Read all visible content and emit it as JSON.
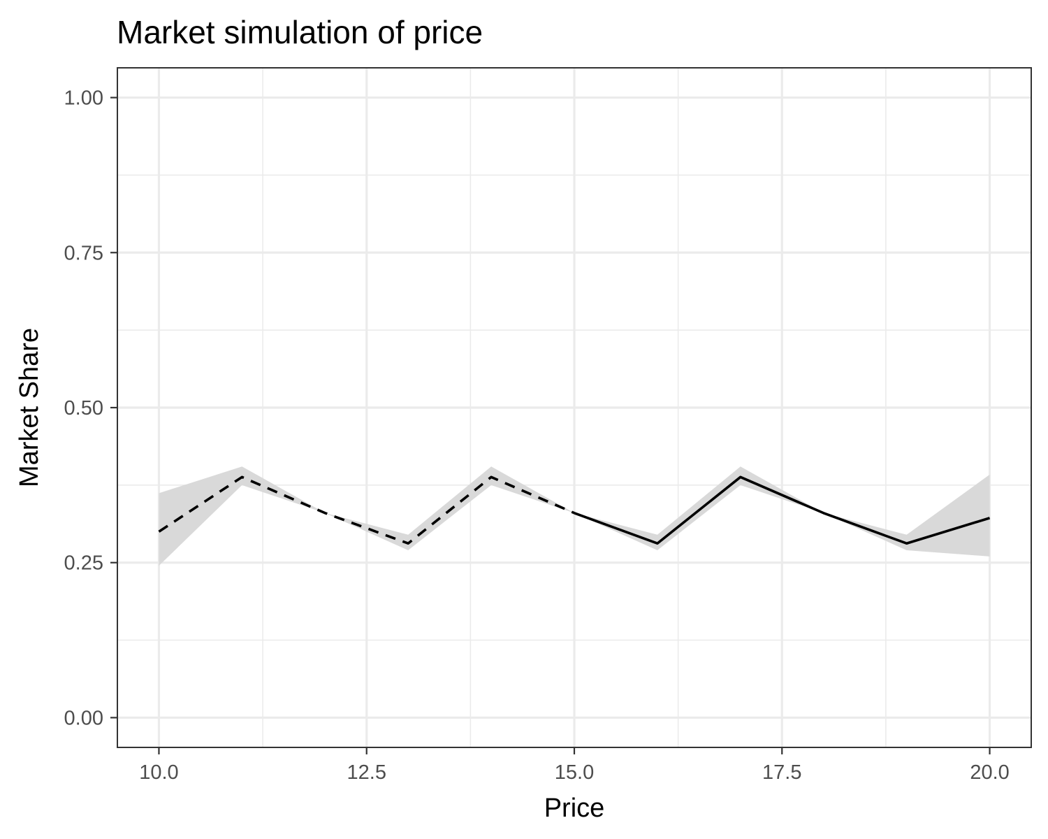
{
  "chart_data": {
    "type": "line",
    "title": "Market simulation of price",
    "xlabel": "Price",
    "ylabel": "Market Share",
    "xlim": [
      9.5,
      20.5
    ],
    "ylim": [
      -0.048,
      1.048
    ],
    "x_ticks": [
      10.0,
      12.5,
      15.0,
      17.5,
      20.0
    ],
    "x_tick_labels": [
      "10.0",
      "12.5",
      "15.0",
      "17.5",
      "20.0"
    ],
    "y_ticks": [
      0.0,
      0.25,
      0.5,
      0.75,
      1.0
    ],
    "y_tick_labels": [
      "0.00",
      "0.25",
      "0.50",
      "0.75",
      "1.00"
    ],
    "x_minor": [
      11.25,
      13.75,
      16.25,
      18.75
    ],
    "y_minor": [
      0.125,
      0.375,
      0.625,
      0.875
    ],
    "grid": true,
    "legend": "none",
    "colors": {
      "line": "#000000",
      "ribbon": "#d9d9d9",
      "grid": "#ebebeb",
      "panel_border": "#333333",
      "tick_text": "#4d4d4d"
    },
    "ribbon": {
      "x": [
        10,
        11,
        12,
        13,
        14,
        15,
        16,
        17,
        18,
        19,
        20
      ],
      "lower": [
        0.245,
        0.375,
        0.33,
        0.27,
        0.375,
        0.33,
        0.27,
        0.375,
        0.33,
        0.27,
        0.26
      ],
      "upper": [
        0.362,
        0.405,
        0.33,
        0.295,
        0.405,
        0.33,
        0.295,
        0.405,
        0.33,
        0.295,
        0.392
      ]
    },
    "series": [
      {
        "style": "dashed",
        "x": [
          10,
          11,
          12,
          13,
          14,
          15
        ],
        "values": [
          0.3,
          0.388,
          0.33,
          0.281,
          0.388,
          0.33
        ]
      },
      {
        "style": "solid",
        "x": [
          15,
          16,
          17,
          18,
          19,
          20
        ],
        "values": [
          0.33,
          0.281,
          0.388,
          0.33,
          0.281,
          0.322
        ]
      }
    ]
  }
}
